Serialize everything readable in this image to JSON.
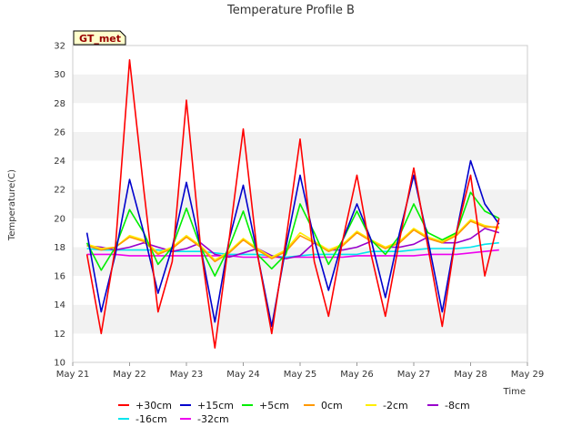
{
  "chart_data": {
    "type": "line",
    "title": "Temperature Profile B",
    "xlabel": "Time",
    "ylabel": "Temperature(C)",
    "ylim": [
      10,
      32
    ],
    "xlim": [
      "May 21",
      "May 29"
    ],
    "x_ticks": [
      "May 21",
      "May 22",
      "May 23",
      "May 24",
      "May 25",
      "May 26",
      "May 27",
      "May 28",
      "May 29"
    ],
    "y_ticks": [
      10,
      12,
      14,
      16,
      18,
      20,
      22,
      24,
      26,
      28,
      30,
      32
    ],
    "grid": "horizontal bands",
    "legend_position": "bottom",
    "annotation": "GT_met",
    "x_values": [
      "May 21 06:00",
      "May 21 12:00",
      "May 21 18:00",
      "May 22 00:00",
      "May 22 06:00",
      "May 22 12:00",
      "May 22 18:00",
      "May 23 00:00",
      "May 23 06:00",
      "May 23 12:00",
      "May 23 18:00",
      "May 24 00:00",
      "May 24 06:00",
      "May 24 12:00",
      "May 24 18:00",
      "May 25 00:00",
      "May 25 06:00",
      "May 25 12:00",
      "May 25 18:00",
      "May 26 00:00",
      "May 26 06:00",
      "May 26 12:00",
      "May 26 18:00",
      "May 27 00:00",
      "May 27 06:00",
      "May 27 12:00",
      "May 27 18:00",
      "May 28 00:00",
      "May 28 06:00",
      "May 28 12:00"
    ],
    "series": [
      {
        "name": "+30cm",
        "color": "#ff0000",
        "values": [
          17.5,
          12.0,
          18.0,
          31.0,
          22.0,
          13.5,
          17.0,
          28.2,
          18.0,
          11.0,
          18.5,
          26.2,
          17.5,
          12.0,
          18.5,
          25.5,
          17.0,
          13.2,
          18.5,
          23.0,
          17.5,
          13.2,
          18.5,
          23.5,
          18.0,
          12.5,
          19.0,
          23.0,
          16.0,
          20.0
        ]
      },
      {
        "name": "+15cm",
        "color": "#0000cc",
        "values": [
          19.0,
          13.5,
          17.5,
          22.7,
          19.0,
          14.8,
          18.0,
          22.5,
          18.0,
          12.8,
          18.5,
          22.3,
          17.5,
          12.5,
          18.0,
          23.0,
          18.5,
          15.0,
          18.5,
          21.0,
          18.5,
          14.5,
          19.0,
          23.0,
          18.5,
          13.5,
          19.0,
          24.0,
          21.0,
          19.6
        ]
      },
      {
        "name": "+5cm",
        "color": "#00ee00",
        "values": [
          18.3,
          16.4,
          18.0,
          20.6,
          19.0,
          16.8,
          18.0,
          20.7,
          18.0,
          16.0,
          18.0,
          20.5,
          17.5,
          16.5,
          17.5,
          21.0,
          19.0,
          16.8,
          18.5,
          20.5,
          18.5,
          17.5,
          18.8,
          21.0,
          19.0,
          18.5,
          19.0,
          21.8,
          20.5,
          20.0
        ]
      },
      {
        "name": "0cm",
        "color": "#ff9900",
        "values": [
          18.1,
          17.8,
          18.0,
          18.7,
          18.4,
          17.5,
          17.9,
          18.7,
          18.0,
          17.0,
          17.6,
          18.5,
          17.8,
          17.2,
          17.7,
          18.8,
          18.3,
          17.7,
          18.1,
          19.0,
          18.4,
          17.9,
          18.3,
          19.2,
          18.6,
          18.3,
          18.8,
          19.8,
          19.4,
          19.4
        ]
      },
      {
        "name": "-2cm",
        "color": "#ffee00",
        "values": [
          18.2,
          17.9,
          18.0,
          18.8,
          18.5,
          17.6,
          18.0,
          18.8,
          18.1,
          17.1,
          17.7,
          18.6,
          17.9,
          17.3,
          17.8,
          19.0,
          18.4,
          17.8,
          18.2,
          19.1,
          18.5,
          18.0,
          18.4,
          19.3,
          18.7,
          18.4,
          18.9,
          19.9,
          19.5,
          19.3
        ]
      },
      {
        "name": "-8cm",
        "color": "#9900cc",
        "values": [
          18.1,
          18.0,
          17.8,
          18.0,
          18.3,
          18.0,
          17.7,
          17.9,
          18.3,
          17.5,
          17.3,
          17.6,
          17.9,
          17.4,
          17.2,
          17.4,
          18.3,
          17.8,
          17.8,
          18.0,
          18.4,
          18.0,
          18.0,
          18.2,
          18.7,
          18.3,
          18.3,
          18.6,
          19.3,
          19.0
        ]
      },
      {
        "name": "-16cm",
        "color": "#00e5ee",
        "values": [
          17.9,
          17.8,
          17.8,
          17.8,
          17.8,
          17.8,
          17.7,
          17.7,
          17.7,
          17.6,
          17.5,
          17.5,
          17.5,
          17.4,
          17.3,
          17.4,
          17.5,
          17.5,
          17.5,
          17.5,
          17.7,
          17.7,
          17.7,
          17.8,
          17.9,
          17.9,
          17.9,
          18.0,
          18.2,
          18.3
        ]
      },
      {
        "name": "-32cm",
        "color": "#ee00ee",
        "values": [
          17.5,
          17.5,
          17.5,
          17.4,
          17.4,
          17.4,
          17.4,
          17.4,
          17.4,
          17.4,
          17.4,
          17.3,
          17.3,
          17.3,
          17.3,
          17.3,
          17.3,
          17.3,
          17.3,
          17.4,
          17.4,
          17.4,
          17.4,
          17.4,
          17.5,
          17.5,
          17.5,
          17.6,
          17.7,
          17.8
        ]
      }
    ]
  }
}
